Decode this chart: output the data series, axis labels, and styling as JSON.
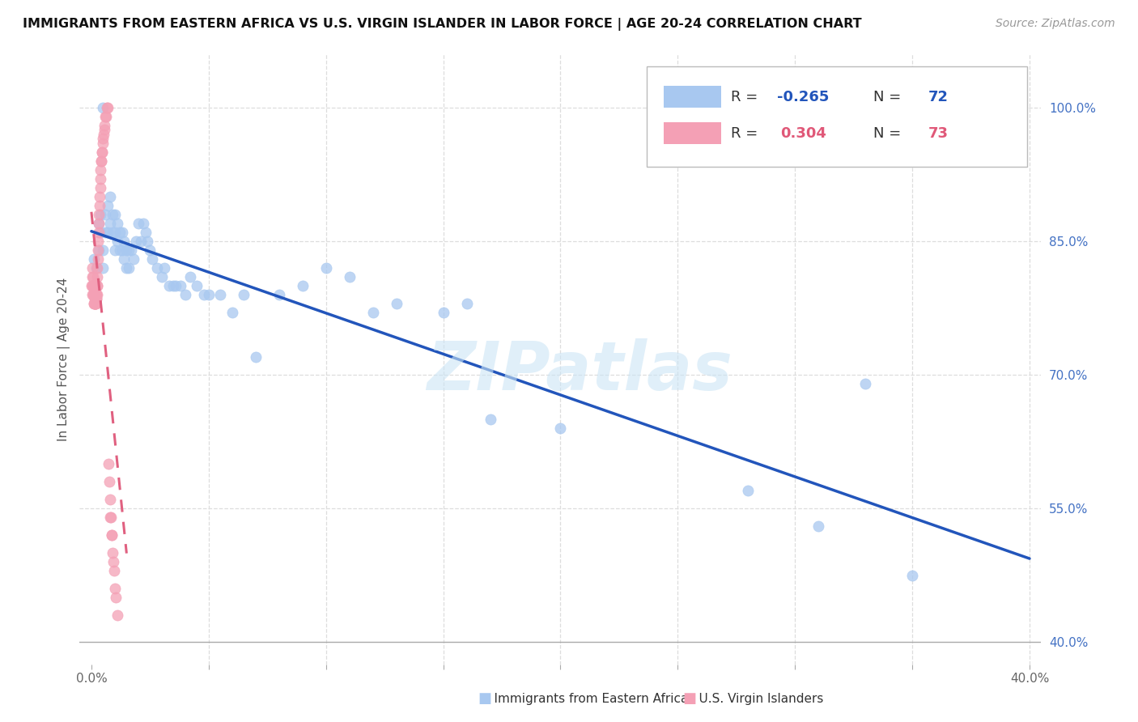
{
  "title": "IMMIGRANTS FROM EASTERN AFRICA VS U.S. VIRGIN ISLANDER IN LABOR FORCE | AGE 20-24 CORRELATION CHART",
  "source": "Source: ZipAtlas.com",
  "ylabel": "In Labor Force | Age 20-24",
  "watermark": "ZIPatlas",
  "blue_R": -0.265,
  "blue_N": 72,
  "pink_R": 0.304,
  "pink_N": 73,
  "blue_color": "#a8c8f0",
  "pink_color": "#f4a0b5",
  "blue_line_color": "#2255bb",
  "pink_trend_color": "#e06080",
  "blue_scatter_x": [
    0.001,
    0.002,
    0.003,
    0.003,
    0.004,
    0.004,
    0.005,
    0.005,
    0.005,
    0.006,
    0.006,
    0.007,
    0.007,
    0.008,
    0.008,
    0.009,
    0.009,
    0.01,
    0.01,
    0.01,
    0.011,
    0.011,
    0.012,
    0.012,
    0.013,
    0.013,
    0.014,
    0.014,
    0.015,
    0.015,
    0.016,
    0.016,
    0.017,
    0.018,
    0.019,
    0.02,
    0.021,
    0.022,
    0.023,
    0.024,
    0.025,
    0.026,
    0.028,
    0.03,
    0.031,
    0.033,
    0.035,
    0.036,
    0.038,
    0.04,
    0.042,
    0.045,
    0.048,
    0.05,
    0.055,
    0.06,
    0.065,
    0.07,
    0.08,
    0.09,
    0.1,
    0.11,
    0.12,
    0.13,
    0.15,
    0.16,
    0.17,
    0.2,
    0.28,
    0.31,
    0.33,
    0.35
  ],
  "blue_scatter_y": [
    0.83,
    0.82,
    0.84,
    0.87,
    0.86,
    0.88,
    0.82,
    0.84,
    1.0,
    0.86,
    0.88,
    0.86,
    0.89,
    0.87,
    0.9,
    0.86,
    0.88,
    0.84,
    0.86,
    0.88,
    0.85,
    0.87,
    0.84,
    0.86,
    0.84,
    0.86,
    0.83,
    0.85,
    0.82,
    0.84,
    0.82,
    0.84,
    0.84,
    0.83,
    0.85,
    0.87,
    0.85,
    0.87,
    0.86,
    0.85,
    0.84,
    0.83,
    0.82,
    0.81,
    0.82,
    0.8,
    0.8,
    0.8,
    0.8,
    0.79,
    0.81,
    0.8,
    0.79,
    0.79,
    0.79,
    0.77,
    0.79,
    0.72,
    0.79,
    0.8,
    0.82,
    0.81,
    0.77,
    0.78,
    0.77,
    0.78,
    0.65,
    0.64,
    0.57,
    0.53,
    0.69,
    0.475
  ],
  "pink_scatter_x": [
    0.0002,
    0.0003,
    0.0004,
    0.0005,
    0.0005,
    0.0006,
    0.0007,
    0.0008,
    0.0008,
    0.0009,
    0.001,
    0.0011,
    0.0011,
    0.0012,
    0.0012,
    0.0013,
    0.0014,
    0.0014,
    0.0015,
    0.0015,
    0.0016,
    0.0016,
    0.0017,
    0.0017,
    0.0018,
    0.0018,
    0.0019,
    0.002,
    0.0021,
    0.0022,
    0.0022,
    0.0023,
    0.0023,
    0.0024,
    0.0025,
    0.0026,
    0.0027,
    0.0028,
    0.0029,
    0.003,
    0.0031,
    0.0033,
    0.0035,
    0.0036,
    0.0037,
    0.0038,
    0.004,
    0.0042,
    0.0043,
    0.0045,
    0.0046,
    0.0048,
    0.005,
    0.0052,
    0.0054,
    0.0056,
    0.006,
    0.0063,
    0.0066,
    0.007,
    0.0073,
    0.0075,
    0.0078,
    0.008,
    0.0082,
    0.0085,
    0.0088,
    0.009,
    0.0093,
    0.0096,
    0.01,
    0.0104,
    0.011
  ],
  "pink_scatter_y": [
    0.8,
    0.81,
    0.82,
    0.79,
    0.8,
    0.8,
    0.79,
    0.8,
    0.81,
    0.8,
    0.78,
    0.79,
    0.8,
    0.78,
    0.79,
    0.785,
    0.78,
    0.79,
    0.78,
    0.79,
    0.78,
    0.785,
    0.78,
    0.785,
    0.78,
    0.785,
    0.78,
    0.79,
    0.785,
    0.79,
    0.785,
    0.79,
    0.8,
    0.8,
    0.81,
    0.82,
    0.83,
    0.84,
    0.85,
    0.86,
    0.87,
    0.88,
    0.89,
    0.9,
    0.91,
    0.92,
    0.93,
    0.94,
    0.94,
    0.95,
    0.95,
    0.96,
    0.965,
    0.97,
    0.975,
    0.98,
    0.99,
    0.99,
    1.0,
    1.0,
    0.6,
    0.58,
    0.56,
    0.54,
    0.54,
    0.52,
    0.52,
    0.5,
    0.49,
    0.48,
    0.46,
    0.45,
    0.43
  ],
  "yticks_right": [
    0.4,
    0.55,
    0.7,
    0.85,
    1.0
  ],
  "ytick_labels_right": [
    "40.0%",
    "55.0%",
    "70.0%",
    "85.0%",
    "100.0%"
  ],
  "xtick_positions": [
    0.0,
    0.05,
    0.1,
    0.15,
    0.2,
    0.25,
    0.3,
    0.35,
    0.4
  ],
  "xtick_labels": [
    "0.0%",
    "",
    "",
    "",
    "",
    "",
    "",
    "",
    "40.0%"
  ],
  "xlim": [
    -0.005,
    0.405
  ],
  "ylim": [
    0.375,
    1.06
  ]
}
